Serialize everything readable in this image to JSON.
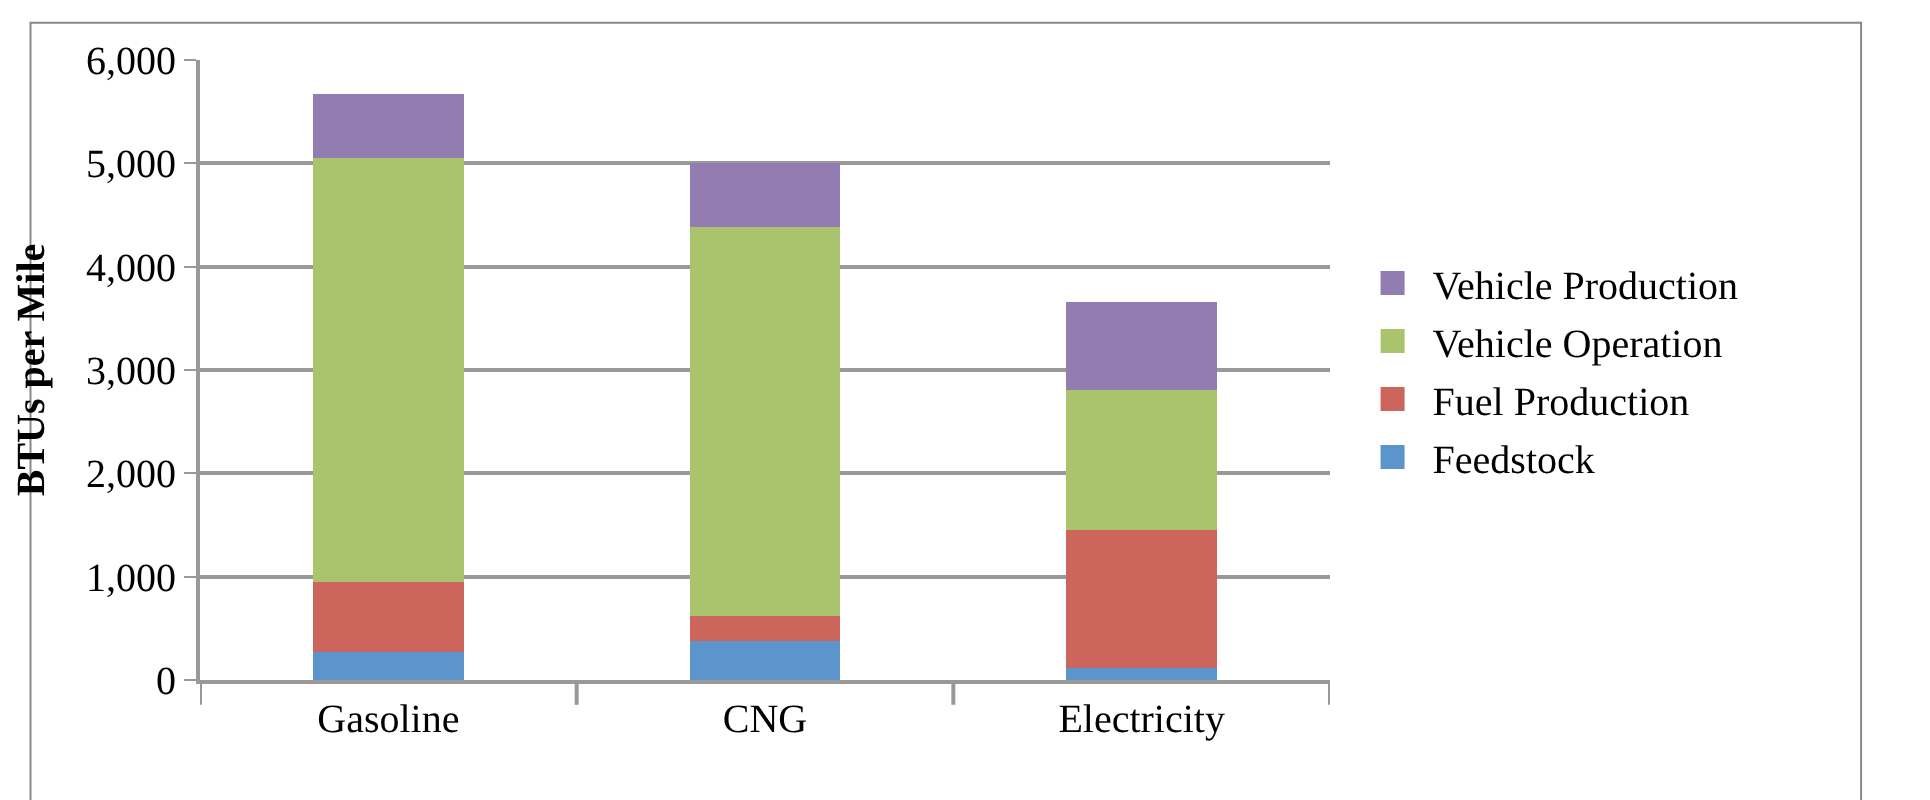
{
  "chart_data": {
    "type": "bar",
    "stacked": true,
    "ylabel": "BTUs per Mile",
    "categories": [
      "Gasoline",
      "CNG",
      "Electricity"
    ],
    "series": [
      {
        "name": "Feedstock",
        "color": "#5b95cb",
        "values": [
          270,
          380,
          115
        ]
      },
      {
        "name": "Fuel Production",
        "color": "#cc665d",
        "values": [
          680,
          240,
          1340
        ]
      },
      {
        "name": "Vehicle Operation",
        "color": "#a9c46c",
        "values": [
          4100,
          3760,
          1350
        ]
      },
      {
        "name": "Vehicle Production",
        "color": "#937cb0",
        "values": [
          620,
          620,
          850
        ]
      }
    ],
    "ylim": [
      0,
      6000
    ],
    "yticks": [
      {
        "value": 0,
        "label": "0"
      },
      {
        "value": 1000,
        "label": "1,000"
      },
      {
        "value": 2000,
        "label": "2,000"
      },
      {
        "value": 3000,
        "label": "3,000"
      },
      {
        "value": 4000,
        "label": "4,000"
      },
      {
        "value": 5000,
        "label": "5,000"
      },
      {
        "value": 6000,
        "label": "6,000"
      }
    ],
    "grid": "y",
    "legend": "right"
  }
}
